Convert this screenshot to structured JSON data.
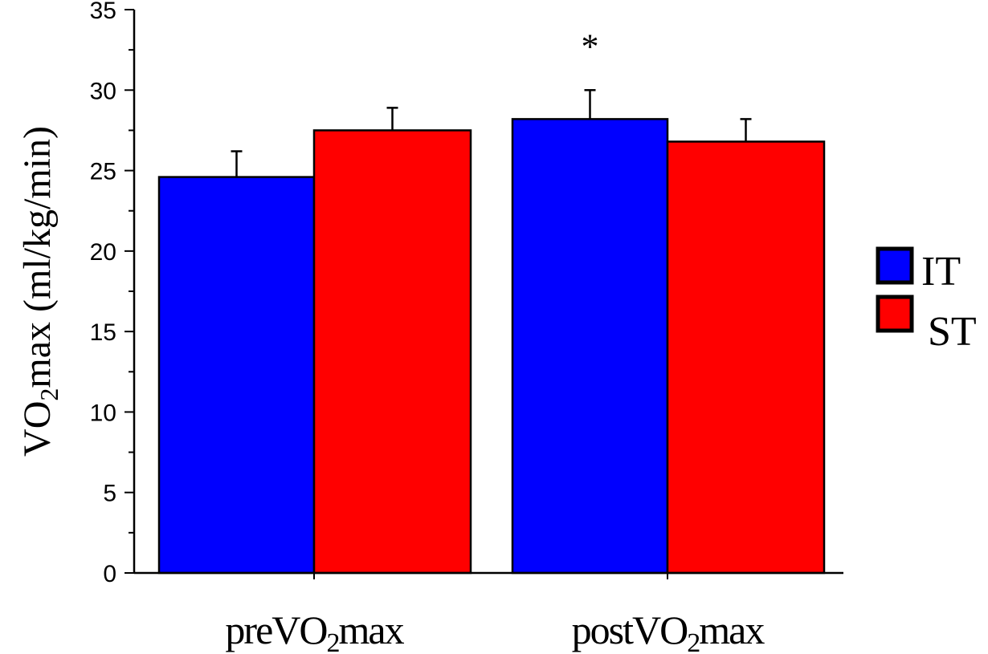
{
  "chart_data": {
    "type": "bar",
    "categories": [
      "preVO2max",
      "postVO2max"
    ],
    "category_labels": [
      {
        "pre": "preVO",
        "sub": "2",
        "post": "max"
      },
      {
        "pre": "postVO",
        "sub": "2",
        "post": "max"
      }
    ],
    "series": [
      {
        "name": "IT",
        "color": "#0000ff",
        "values": [
          24.6,
          28.2
        ],
        "errors": [
          1.6,
          1.8
        ]
      },
      {
        "name": "ST",
        "color": "#ff0000",
        "values": [
          27.5,
          26.8
        ],
        "errors": [
          1.4,
          1.4
        ]
      }
    ],
    "ylabel": {
      "pre": "VO",
      "sub": "2",
      "post": "max (ml/kg/min)"
    },
    "ylim": [
      0,
      35
    ],
    "yticks": [
      0,
      5,
      10,
      15,
      20,
      25,
      30,
      35
    ],
    "y_minor_step": 2.5,
    "annotations": [
      {
        "text": "*",
        "category": 1,
        "series": 0
      }
    ],
    "legend": {
      "placement": "right"
    },
    "grid": false
  }
}
